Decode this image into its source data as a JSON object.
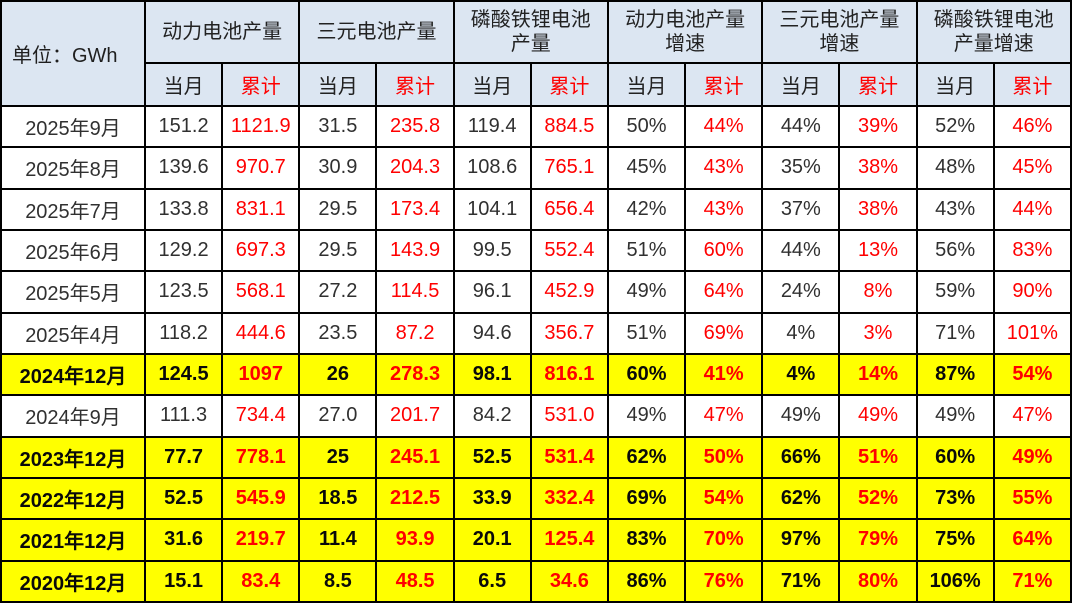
{
  "chart_data": {
    "type": "table",
    "unit_label": "单位：GWh",
    "column_groups": [
      "动力电池产量",
      "三元电池产量",
      "磷酸铁锂电池\n产量",
      "动力电池产量\n增速",
      "三元电池产量\n增速",
      "磷酸铁锂电池\n产量增速"
    ],
    "sub_columns": [
      "当月",
      "累计"
    ],
    "rows": [
      {
        "period": "2025年9月",
        "highlight": false,
        "values": [
          "151.2",
          "1121.9",
          "31.5",
          "235.8",
          "119.4",
          "884.5",
          "50%",
          "44%",
          "44%",
          "39%",
          "52%",
          "46%"
        ]
      },
      {
        "period": "2025年8月",
        "highlight": false,
        "values": [
          "139.6",
          "970.7",
          "30.9",
          "204.3",
          "108.6",
          "765.1",
          "45%",
          "43%",
          "35%",
          "38%",
          "48%",
          "45%"
        ]
      },
      {
        "period": "2025年7月",
        "highlight": false,
        "values": [
          "133.8",
          "831.1",
          "29.5",
          "173.4",
          "104.1",
          "656.4",
          "42%",
          "43%",
          "37%",
          "38%",
          "43%",
          "44%"
        ]
      },
      {
        "period": "2025年6月",
        "highlight": false,
        "values": [
          "129.2",
          "697.3",
          "29.5",
          "143.9",
          "99.5",
          "552.4",
          "51%",
          "60%",
          "44%",
          "13%",
          "56%",
          "83%"
        ]
      },
      {
        "period": "2025年5月",
        "highlight": false,
        "values": [
          "123.5",
          "568.1",
          "27.2",
          "114.5",
          "96.1",
          "452.9",
          "49%",
          "64%",
          "24%",
          "8%",
          "59%",
          "90%"
        ]
      },
      {
        "period": "2025年4月",
        "highlight": false,
        "values": [
          "118.2",
          "444.6",
          "23.5",
          "87.2",
          "94.6",
          "356.7",
          "51%",
          "69%",
          "4%",
          "3%",
          "71%",
          "101%"
        ]
      },
      {
        "period": "2024年12月",
        "highlight": true,
        "values": [
          "124.5",
          "1097",
          "26",
          "278.3",
          "98.1",
          "816.1",
          "60%",
          "41%",
          "4%",
          "14%",
          "87%",
          "54%"
        ]
      },
      {
        "period": "2024年9月",
        "highlight": false,
        "values": [
          "111.3",
          "734.4",
          "27.0",
          "201.7",
          "84.2",
          "531.0",
          "49%",
          "47%",
          "49%",
          "49%",
          "49%",
          "47%"
        ]
      },
      {
        "period": "2023年12月",
        "highlight": true,
        "values": [
          "77.7",
          "778.1",
          "25",
          "245.1",
          "52.5",
          "531.4",
          "62%",
          "50%",
          "66%",
          "51%",
          "60%",
          "49%"
        ]
      },
      {
        "period": "2022年12月",
        "highlight": true,
        "values": [
          "52.5",
          "545.9",
          "18.5",
          "212.5",
          "33.9",
          "332.4",
          "69%",
          "54%",
          "62%",
          "52%",
          "73%",
          "55%"
        ]
      },
      {
        "period": "2021年12月",
        "highlight": true,
        "values": [
          "31.6",
          "219.7",
          "11.4",
          "93.9",
          "20.1",
          "125.4",
          "83%",
          "70%",
          "97%",
          "79%",
          "75%",
          "64%"
        ]
      },
      {
        "period": "2020年12月",
        "highlight": true,
        "values": [
          "15.1",
          "83.4",
          "8.5",
          "48.5",
          "6.5",
          "34.6",
          "86%",
          "76%",
          "71%",
          "80%",
          "106%",
          "71%"
        ]
      }
    ]
  },
  "colors": {
    "header_bg": "#dce6f2",
    "highlight_bg": "#ffff00",
    "accent_red": "#ff0000",
    "text": "#303030",
    "border": "#000000"
  }
}
